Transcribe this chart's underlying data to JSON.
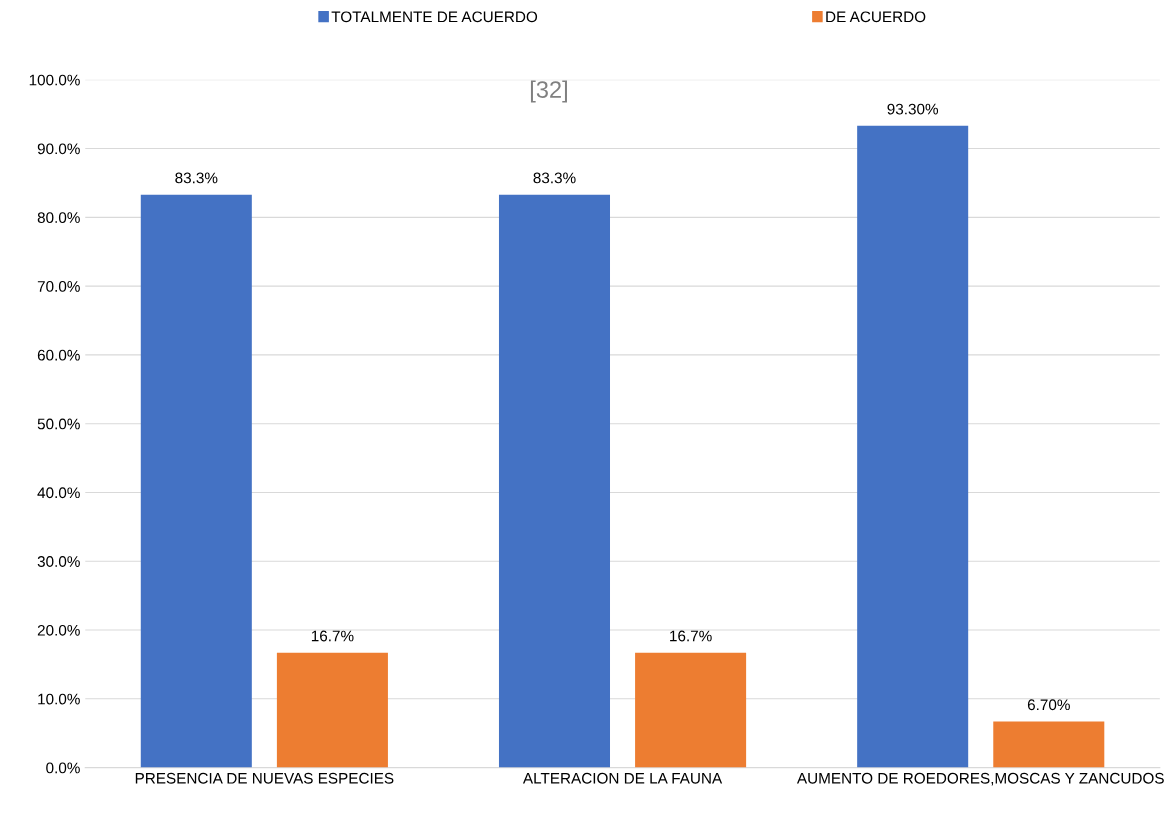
{
  "chart_data": {
    "type": "bar",
    "categories": [
      "PRESENCIA DE NUEVAS ESPECIES",
      "ALTERACION DE LA FAUNA",
      "AUMENTO DE ROEDORES,MOSCAS Y ZANCUDOS"
    ],
    "series": [
      {
        "name": "TOTALMENTE DE ACUERDO",
        "color": "#4472c4",
        "values": [
          83.3,
          83.3,
          93.3
        ],
        "value_labels": [
          "83.3%",
          "83.3%",
          "93.30%"
        ]
      },
      {
        "name": "DE ACUERDO",
        "color": "#ed7d31",
        "values": [
          16.7,
          16.7,
          6.7
        ],
        "value_labels": [
          "16.7%",
          "16.7%",
          "6.70%"
        ]
      }
    ],
    "ylim": [
      0,
      100
    ],
    "yticks": [
      {
        "value": 0,
        "label": "0.0%"
      },
      {
        "value": 10,
        "label": "10.0%"
      },
      {
        "value": 20,
        "label": "20.0%"
      },
      {
        "value": 30,
        "label": "30.0%"
      },
      {
        "value": 40,
        "label": "40.0%"
      },
      {
        "value": 50,
        "label": "50.0%"
      },
      {
        "value": 60,
        "label": "60.0%"
      },
      {
        "value": 70,
        "label": "70.0%"
      },
      {
        "value": 80,
        "label": "80.0%"
      },
      {
        "value": 90,
        "label": "90.0%"
      },
      {
        "value": 100,
        "label": "100.0%"
      }
    ],
    "grid": "y",
    "legend": "top",
    "annotations": [
      "[32]"
    ]
  }
}
